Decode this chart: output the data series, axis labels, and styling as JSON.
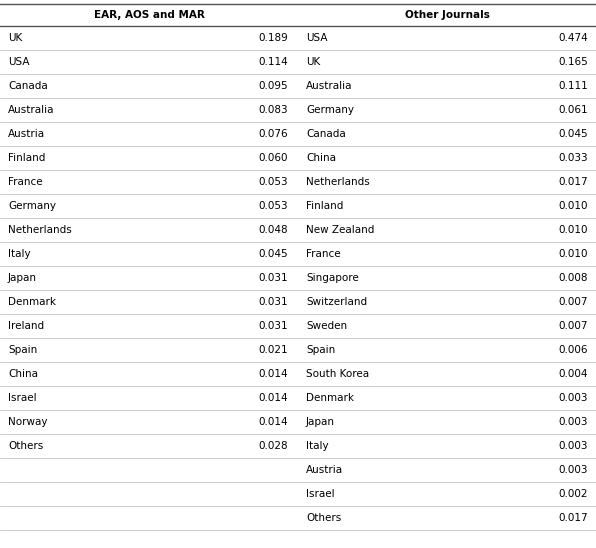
{
  "left_header": "EAR, AOS and MAR",
  "right_header": "Other Journals",
  "left_rows": [
    [
      "UK",
      "0.189"
    ],
    [
      "USA",
      "0.114"
    ],
    [
      "Canada",
      "0.095"
    ],
    [
      "Australia",
      "0.083"
    ],
    [
      "Austria",
      "0.076"
    ],
    [
      "Finland",
      "0.060"
    ],
    [
      "France",
      "0.053"
    ],
    [
      "Germany",
      "0.053"
    ],
    [
      "Netherlands",
      "0.048"
    ],
    [
      "Italy",
      "0.045"
    ],
    [
      "Japan",
      "0.031"
    ],
    [
      "Denmark",
      "0.031"
    ],
    [
      "Ireland",
      "0.031"
    ],
    [
      "Spain",
      "0.021"
    ],
    [
      "China",
      "0.014"
    ],
    [
      "Israel",
      "0.014"
    ],
    [
      "Norway",
      "0.014"
    ],
    [
      "Others",
      "0.028"
    ]
  ],
  "right_rows": [
    [
      "USA",
      "0.474"
    ],
    [
      "UK",
      "0.165"
    ],
    [
      "Australia",
      "0.111"
    ],
    [
      "Germany",
      "0.061"
    ],
    [
      "Canada",
      "0.045"
    ],
    [
      "China",
      "0.033"
    ],
    [
      "Netherlands",
      "0.017"
    ],
    [
      "Finland",
      "0.010"
    ],
    [
      "New Zealand",
      "0.010"
    ],
    [
      "France",
      "0.010"
    ],
    [
      "Singapore",
      "0.008"
    ],
    [
      "Switzerland",
      "0.007"
    ],
    [
      "Sweden",
      "0.007"
    ],
    [
      "Spain",
      "0.006"
    ],
    [
      "South Korea",
      "0.004"
    ],
    [
      "Denmark",
      "0.003"
    ],
    [
      "Japan",
      "0.003"
    ],
    [
      "Italy",
      "0.003"
    ],
    [
      "Austria",
      "0.003"
    ],
    [
      "Israel",
      "0.002"
    ],
    [
      "Others",
      "0.017"
    ]
  ],
  "header_fontsize": 7.5,
  "row_fontsize": 7.5,
  "bg_color": "#ffffff",
  "header_color": "#000000",
  "row_color": "#000000",
  "line_color": "#bbbbbb",
  "top_line_color": "#555555",
  "header_line_color": "#555555"
}
